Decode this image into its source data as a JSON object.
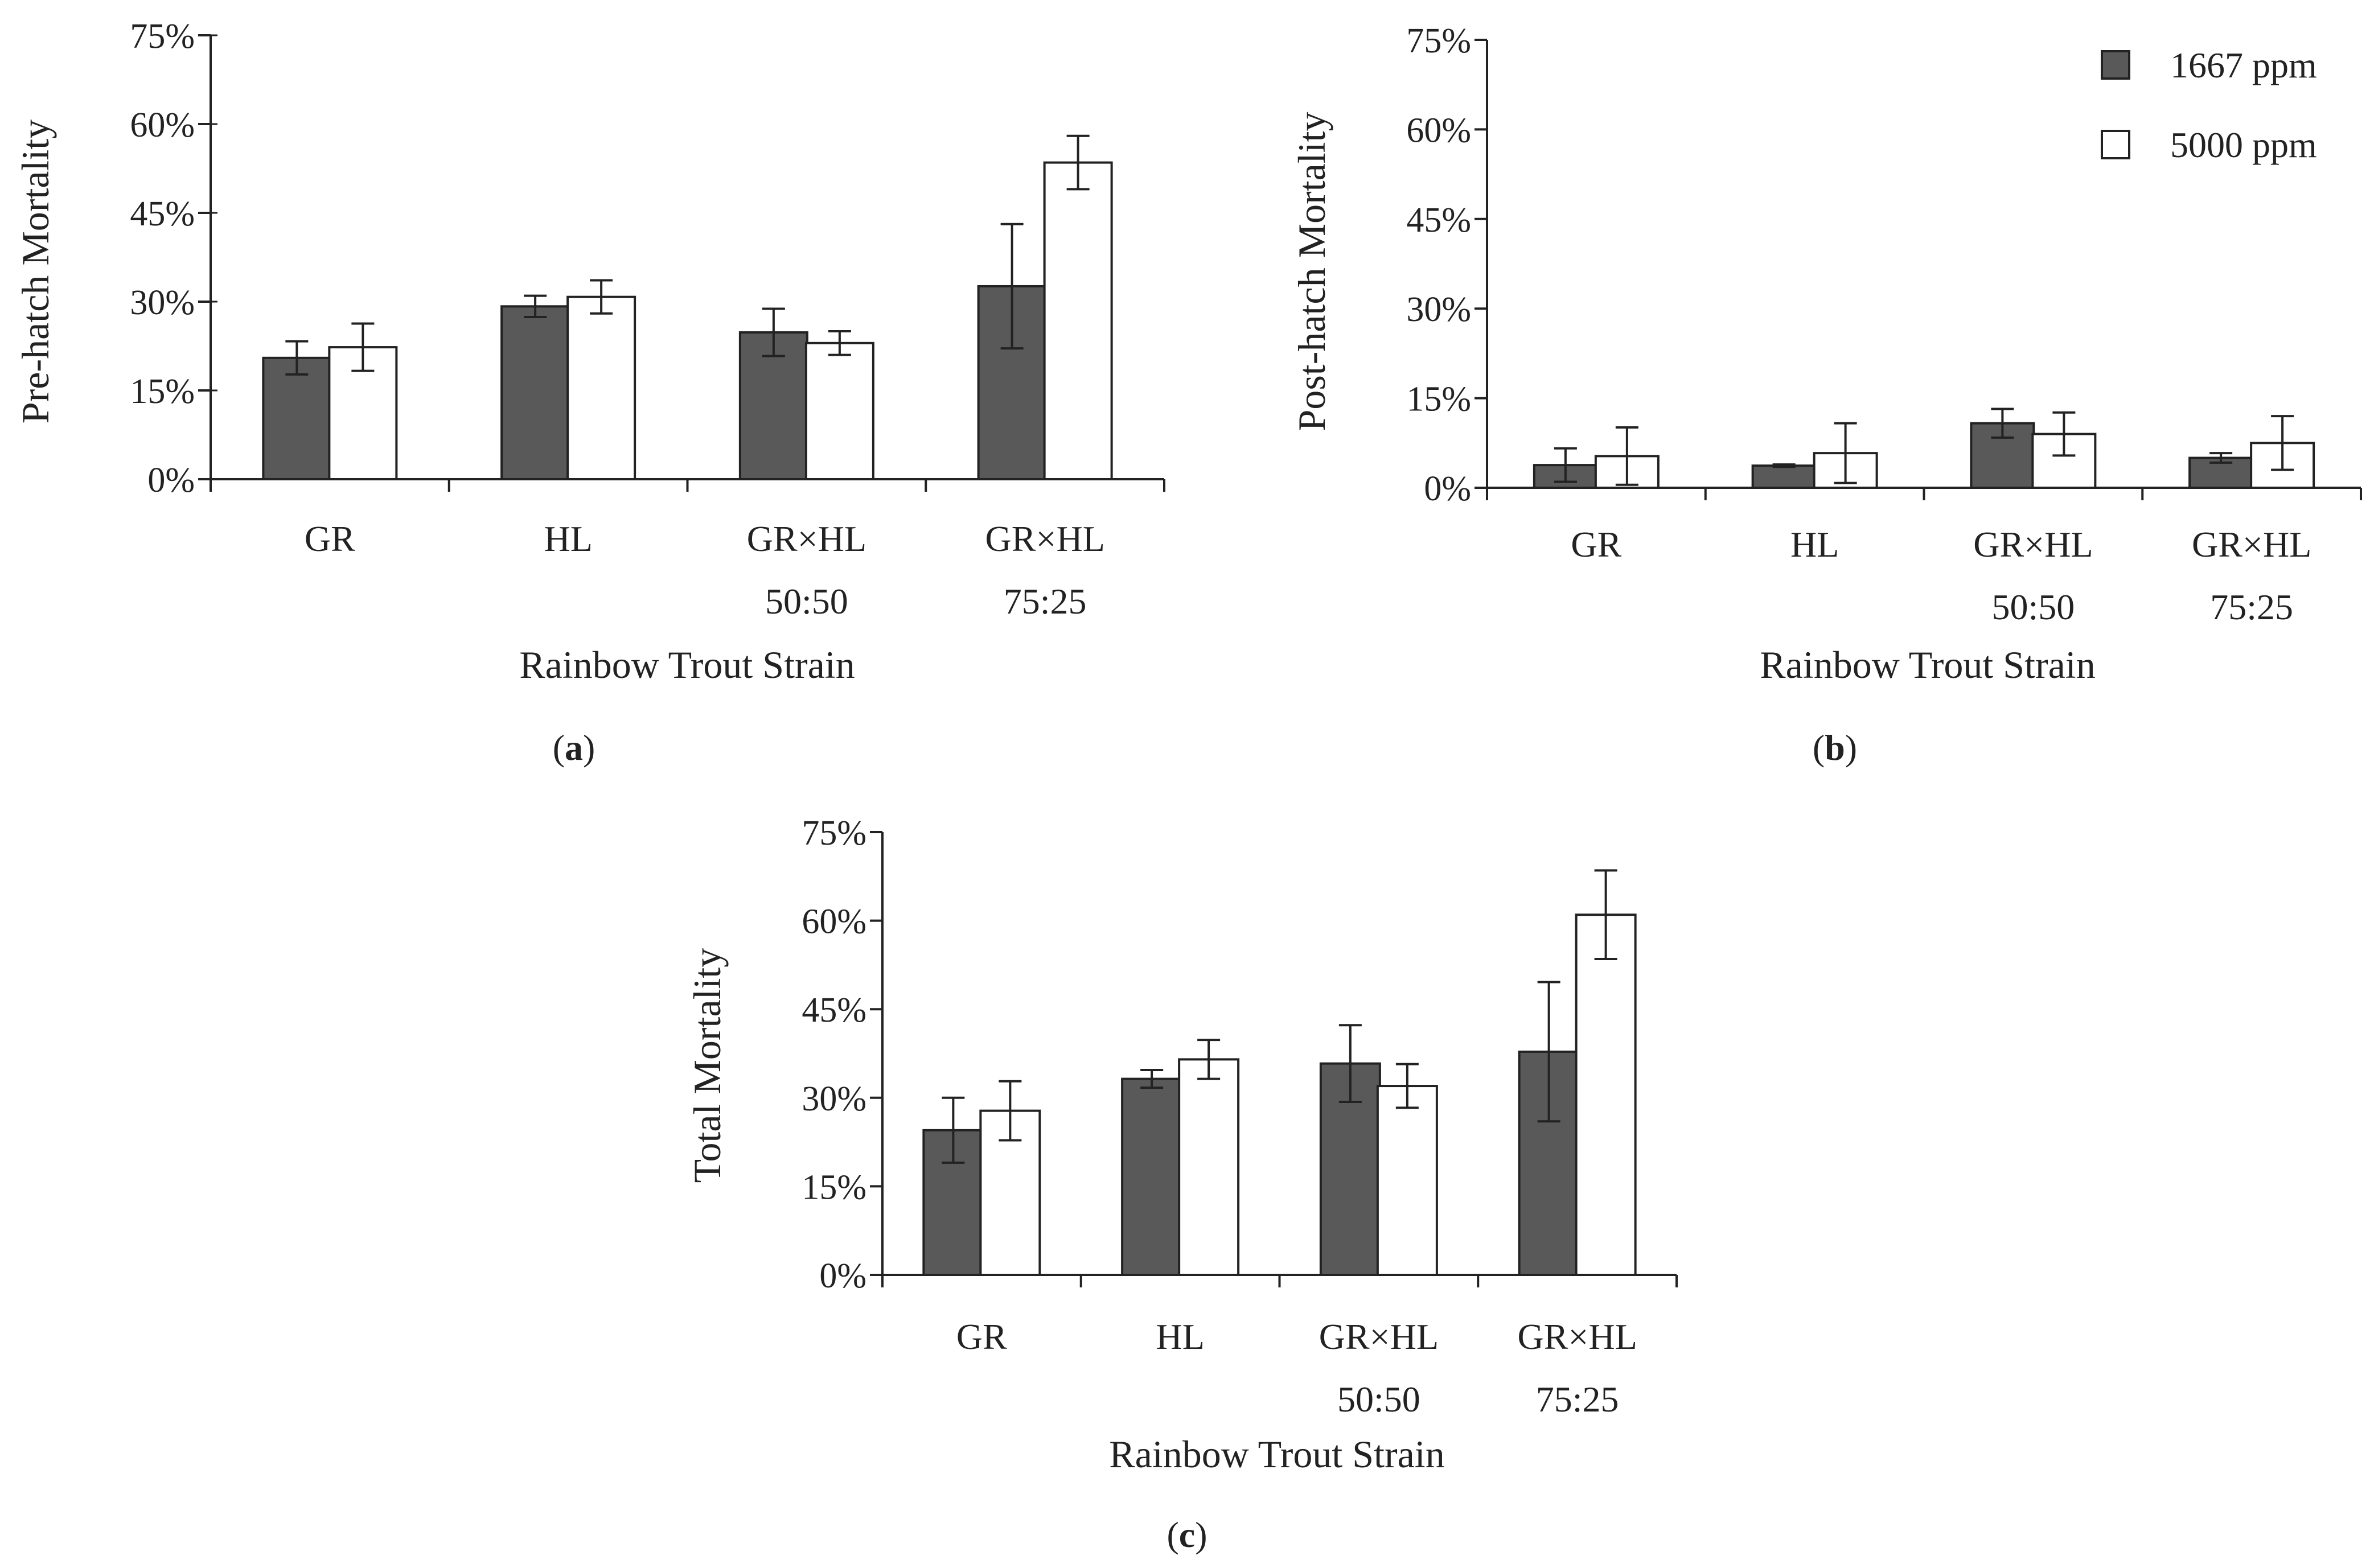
{
  "colors": {
    "dark_bar": "#595959",
    "light_bar": "#ffffff",
    "stroke": "#222222"
  },
  "legend": [
    {
      "label": "1667 ppm",
      "color": "#595959"
    },
    {
      "label": "5000 ppm",
      "color": "#ffffff"
    }
  ],
  "chart_data": [
    {
      "id": "a",
      "type": "bar",
      "panel_label": {
        "open": "(",
        "letter": "a",
        "close": ")"
      },
      "xlabel": "Rainbow Trout Strain",
      "ylabel": "Pre-hatch Mortality",
      "ylim": [
        0,
        75
      ],
      "yticks": [
        "0%",
        "15%",
        "30%",
        "45%",
        "60%",
        "75%"
      ],
      "categories": [
        [
          "GR"
        ],
        [
          "HL"
        ],
        [
          "GR×HL",
          "50:50"
        ],
        [
          "GR×HL",
          "75:25"
        ]
      ],
      "series": [
        {
          "name": "1667 ppm",
          "values": [
            20.5,
            29.2,
            24.8,
            32.6
          ],
          "errors": [
            2.8,
            1.8,
            4.0,
            10.5
          ]
        },
        {
          "name": "5000 ppm",
          "values": [
            22.3,
            30.8,
            23.0,
            53.5
          ],
          "errors": [
            4.0,
            2.8,
            2.0,
            4.5
          ]
        }
      ]
    },
    {
      "id": "b",
      "type": "bar",
      "panel_label": {
        "open": "(",
        "letter": "b",
        "close": ")"
      },
      "xlabel": "Rainbow Trout Strain",
      "ylabel": "Post-hatch Mortality",
      "ylim": [
        0,
        75
      ],
      "yticks": [
        "0%",
        "15%",
        "30%",
        "45%",
        "60%",
        "75%"
      ],
      "categories": [
        [
          "GR"
        ],
        [
          "HL"
        ],
        [
          "GR×HL",
          "50:50"
        ],
        [
          "GR×HL",
          "75:25"
        ]
      ],
      "series": [
        {
          "name": "1667 ppm",
          "values": [
            3.8,
            3.7,
            10.8,
            5.0
          ],
          "errors": [
            2.8,
            0.2,
            2.4,
            0.8
          ]
        },
        {
          "name": "5000 ppm",
          "values": [
            5.3,
            5.8,
            9.0,
            7.5
          ],
          "errors": [
            4.8,
            5.0,
            3.6,
            4.5
          ]
        }
      ]
    },
    {
      "id": "c",
      "type": "bar",
      "panel_label": {
        "open": "(",
        "letter": "c",
        "close": ")"
      },
      "xlabel": "Rainbow Trout Strain",
      "ylabel": "Total Mortality",
      "ylim": [
        0,
        75
      ],
      "yticks": [
        "0%",
        "15%",
        "30%",
        "45%",
        "60%",
        "75%"
      ],
      "categories": [
        [
          "GR"
        ],
        [
          "HL"
        ],
        [
          "GR×HL",
          "50:50"
        ],
        [
          "GR×HL",
          "75:25"
        ]
      ],
      "series": [
        {
          "name": "1667 ppm",
          "values": [
            24.5,
            33.2,
            35.8,
            37.8
          ],
          "errors": [
            5.5,
            1.5,
            6.5,
            11.8
          ]
        },
        {
          "name": "5000 ppm",
          "values": [
            27.8,
            36.5,
            32.0,
            61.0
          ],
          "errors": [
            5.0,
            3.3,
            3.7,
            7.5
          ]
        }
      ]
    }
  ]
}
